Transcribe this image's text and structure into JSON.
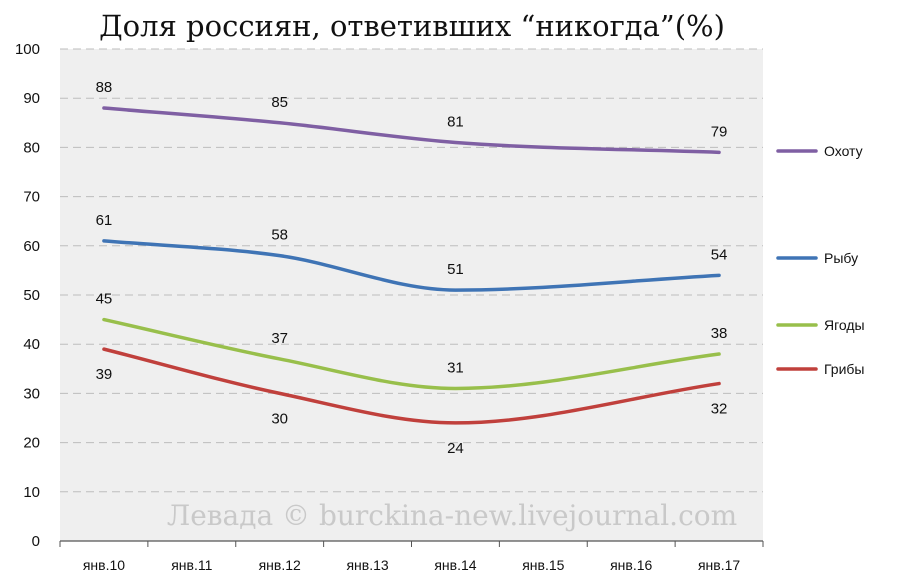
{
  "chart_data": {
    "type": "line",
    "title": "Доля россиян, ответивших “никогда”(%)",
    "xlabel": "",
    "ylabel": "",
    "ylim": [
      0,
      100
    ],
    "yticks": [
      0,
      10,
      20,
      30,
      40,
      50,
      60,
      70,
      80,
      90,
      100
    ],
    "categories": [
      "янв.10",
      "янв.11",
      "янв.12",
      "янв.13",
      "янв.14",
      "янв.15",
      "янв.16",
      "янв.17"
    ],
    "grid": true,
    "legend_position": "right",
    "smooth": true,
    "series": [
      {
        "name": "Охоту",
        "color": "#7f5fa3",
        "points": [
          [
            0,
            88
          ],
          [
            2,
            85
          ],
          [
            4,
            81
          ],
          [
            7,
            79
          ]
        ]
      },
      {
        "name": "Рыбу",
        "color": "#3f74b5",
        "points": [
          [
            0,
            61
          ],
          [
            2,
            58
          ],
          [
            4,
            51
          ],
          [
            7,
            54
          ]
        ]
      },
      {
        "name": "Ягоды",
        "color": "#98bf4b",
        "points": [
          [
            0,
            45
          ],
          [
            2,
            37
          ],
          [
            4,
            31
          ],
          [
            7,
            38
          ]
        ]
      },
      {
        "name": "Грибы",
        "color": "#c0403c",
        "points": [
          [
            0,
            39
          ],
          [
            2,
            30
          ],
          [
            4,
            24
          ],
          [
            7,
            32
          ]
        ]
      }
    ]
  },
  "watermark": "Левада © burckina-new.livejournal.com"
}
